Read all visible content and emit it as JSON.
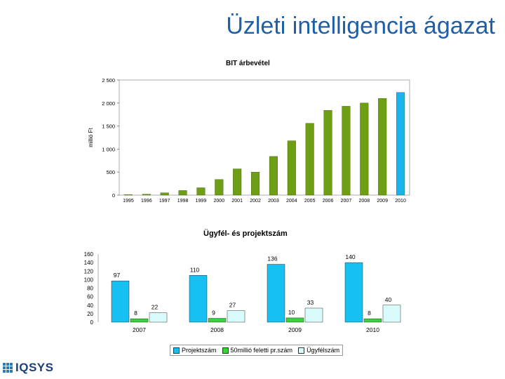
{
  "slide": {
    "title": "Üzleti intelligencia ágazat"
  },
  "logo": {
    "text": "IQSYS"
  },
  "chart_data": [
    {
      "type": "bar",
      "title": "BIT árbevétel",
      "ylabel": "millió Ft",
      "xlabel": "",
      "ylim": [
        0,
        2500
      ],
      "yticks": [
        0,
        500,
        1000,
        1500,
        2000,
        2500
      ],
      "ytick_labels": [
        "0",
        "500",
        "1 000",
        "1 500",
        "2 000",
        "2 500"
      ],
      "categories": [
        "1995",
        "1996",
        "1997",
        "1998",
        "1999",
        "2000",
        "2001",
        "2002",
        "2003",
        "2004",
        "2005",
        "2006",
        "2007",
        "2008",
        "2009",
        "2010"
      ],
      "values": [
        10,
        20,
        50,
        100,
        160,
        340,
        570,
        500,
        840,
        1180,
        1560,
        1840,
        1930,
        2000,
        2100,
        2230
      ],
      "colors": {
        "main": "#6e9e14",
        "last": "#19b4ec"
      },
      "grid": false,
      "legend": "none"
    },
    {
      "type": "bar",
      "title": "Ügyfél- és projektszám",
      "ylim": [
        0,
        160
      ],
      "yticks": [
        0,
        20,
        40,
        60,
        80,
        100,
        120,
        140,
        160
      ],
      "categories": [
        "2007",
        "2008",
        "2009",
        "2010"
      ],
      "series": [
        {
          "name": "Projektszám",
          "values": [
            97,
            110,
            136,
            140
          ],
          "color": "#16c0f0"
        },
        {
          "name": "50millió feletti pr.szám",
          "values": [
            8,
            9,
            10,
            8
          ],
          "color": "#3ad23a"
        },
        {
          "name": "Ügyfélszám",
          "values": [
            22,
            27,
            33,
            40
          ],
          "color": "#d9fbfc"
        }
      ],
      "legend": "bottom",
      "grid": false
    }
  ]
}
